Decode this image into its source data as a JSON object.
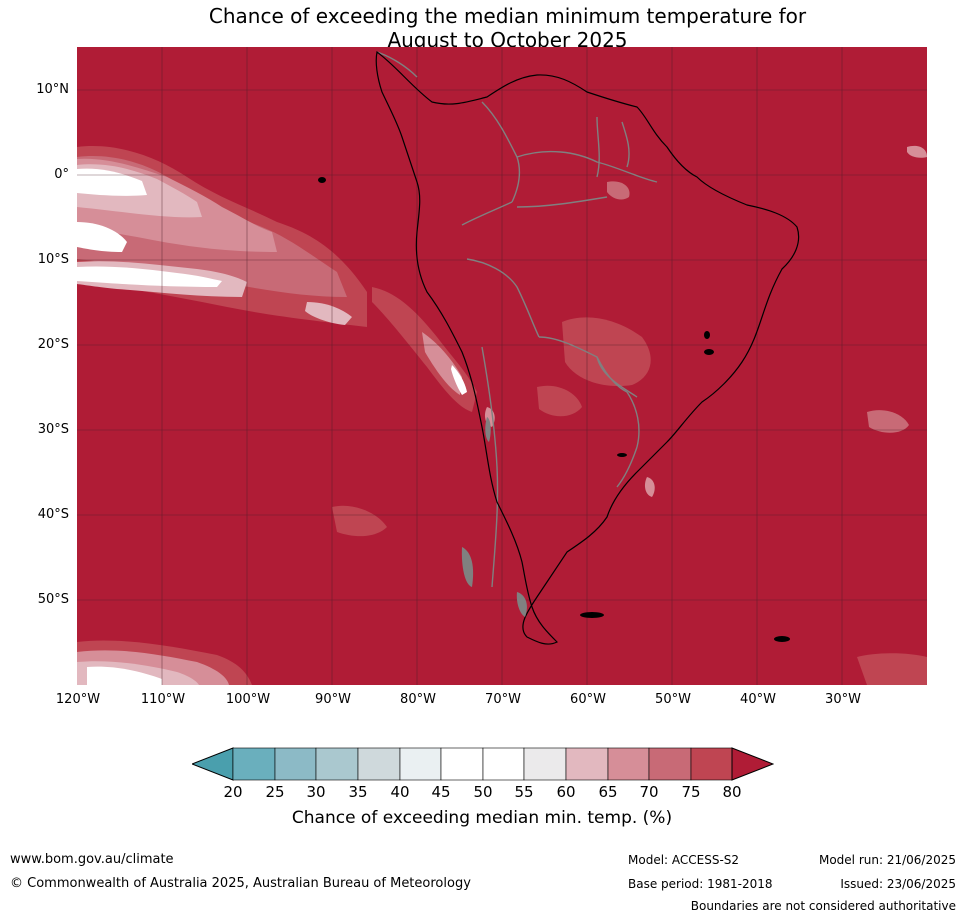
{
  "title_line1": "Chance of exceeding the median minimum temperature for",
  "title_line2": "August to October 2025",
  "map": {
    "region": "South America",
    "lat_labels": [
      "10°N",
      "0°",
      "10°S",
      "20°S",
      "30°S",
      "40°S",
      "50°S"
    ],
    "lon_labels": [
      "120°W",
      "110°W",
      "100°W",
      "90°W",
      "80°W",
      "70°W",
      "60°W",
      "50°W",
      "40°W",
      "30°W"
    ],
    "lat_range": [
      -60,
      15
    ],
    "lon_range": [
      -120,
      -20
    ],
    "background_category": "80+",
    "colors": {
      "lt20": "#4a9fad",
      "c20_25": "#6aafbd",
      "c25_30": "#8cbac6",
      "c30_35": "#aac8cf",
      "c35_40": "#cfd9dc",
      "c40_45": "#eaf0f2",
      "c45_50": "#ffffff",
      "c50_55": "#ffffff",
      "c55_60": "#ebeaeb",
      "c60_65": "#e2b8bf",
      "c65_70": "#d68e98",
      "c70_75": "#c86a76",
      "c75_80": "#bf4552",
      "gt80": "#b01c36"
    }
  },
  "colorbar": {
    "ticks": [
      "20",
      "25",
      "30",
      "35",
      "40",
      "45",
      "50",
      "55",
      "60",
      "65",
      "70",
      "75",
      "80"
    ],
    "label": "Chance of exceeding median min. temp. (%)"
  },
  "footer": {
    "website": "www.bom.gov.au/climate",
    "copyright": "© Commonwealth of Australia 2025, Australian Bureau of Meteorology",
    "model": "Model: ACCESS-S2",
    "base_period": "Base period: 1981-2018",
    "model_run": "Model run: 21/06/2025",
    "issued": "Issued: 23/06/2025",
    "disclaimer": "Boundaries are not considered authoritative"
  }
}
